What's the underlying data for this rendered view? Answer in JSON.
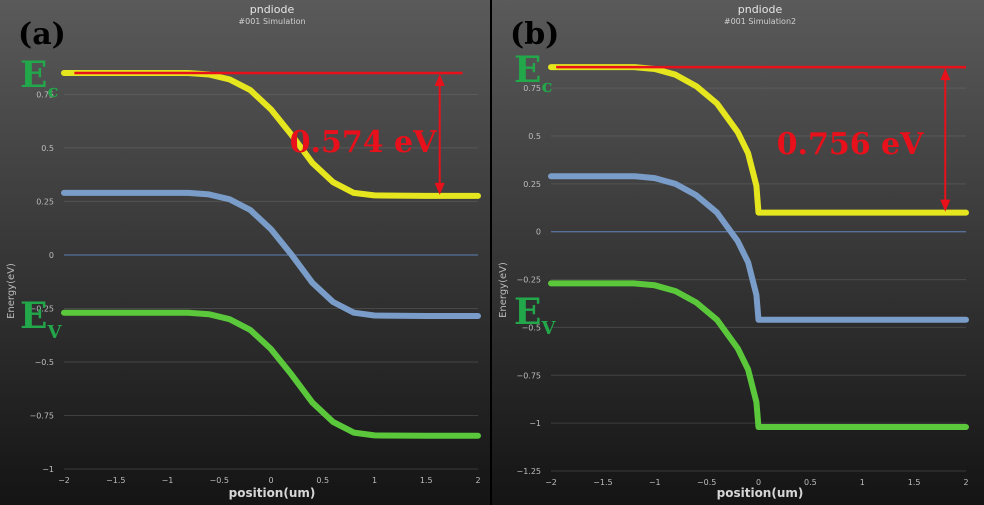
{
  "chart_data": [
    {
      "panel_label": "(a)",
      "title": "pndiode",
      "subtitle": "#001 Simulation",
      "type": "line",
      "xlabel": "position(um)",
      "ylabel": "Energy(eV)",
      "xlim": [
        -2,
        2
      ],
      "ylim": [
        -1,
        0.85
      ],
      "xticks": [
        -2,
        -1.5,
        -1,
        -0.5,
        0,
        0.5,
        1,
        1.5,
        2
      ],
      "xtick_labels": [
        "−2",
        "−1.5",
        "−1",
        "−0.5",
        "0",
        "0.5",
        "1",
        "1.5",
        "2"
      ],
      "yticks": [
        -1,
        -0.75,
        -0.5,
        -0.25,
        0,
        0.25,
        0.5,
        0.75
      ],
      "ytick_labels": [
        "−1",
        "−0.75",
        "−0.5",
        "−0.25",
        "0",
        "0.25",
        "0.5",
        "0.75"
      ],
      "grid": true,
      "zero_line": true,
      "series": [
        {
          "color": "#e6e61e",
          "x": [
            -2,
            -0.8,
            -0.6,
            -0.4,
            -0.2,
            0,
            0.2,
            0.4,
            0.6,
            0.8,
            1,
            1.5,
            2
          ],
          "values": [
            0.85,
            0.85,
            0.843,
            0.82,
            0.77,
            0.68,
            0.56,
            0.43,
            0.34,
            0.29,
            0.278,
            0.276,
            0.276
          ]
        },
        {
          "color": "#7a9cc8",
          "x": [
            -2,
            -0.8,
            -0.6,
            -0.4,
            -0.2,
            0,
            0.2,
            0.4,
            0.6,
            0.8,
            1,
            1.5,
            2
          ],
          "values": [
            0.29,
            0.29,
            0.283,
            0.26,
            0.21,
            0.12,
            -0.0,
            -0.13,
            -0.22,
            -0.27,
            -0.283,
            -0.285,
            -0.285
          ]
        },
        {
          "color": "#5ac83a",
          "x": [
            -2,
            -0.8,
            -0.6,
            -0.4,
            -0.2,
            0,
            0.2,
            0.4,
            0.6,
            0.8,
            1,
            1.5,
            2
          ],
          "values": [
            -0.27,
            -0.27,
            -0.277,
            -0.3,
            -0.35,
            -0.44,
            -0.56,
            -0.69,
            -0.78,
            -0.83,
            -0.843,
            -0.845,
            -0.845
          ]
        }
      ],
      "annotations": {
        "reference_level": {
          "color": "#e8101a",
          "y": 0.85,
          "x": [
            -1.9,
            1.85
          ]
        },
        "gap_arrow": {
          "color": "#e8101a",
          "x": 1.63,
          "y_from": 0.85,
          "y_to": 0.276,
          "label": "0.574 eV"
        },
        "band_labels": [
          {
            "main": "E",
            "sub": "c",
            "y": 0.75
          },
          {
            "main": "E",
            "sub": "V",
            "y": -0.29
          }
        ]
      }
    },
    {
      "panel_label": "(b)",
      "title": "pndiode",
      "subtitle": "#001 Simulation2",
      "type": "line",
      "xlabel": "position(um)",
      "ylabel": "Energy(eV)",
      "xlim": [
        -2,
        2
      ],
      "ylim": [
        -1.25,
        0.85
      ],
      "xticks": [
        -2,
        -1.5,
        -1,
        -0.5,
        0,
        0.5,
        1,
        1.5,
        2
      ],
      "xtick_labels": [
        "−2",
        "−1.5",
        "−1",
        "−0.5",
        "0",
        "0.5",
        "1",
        "1.5",
        "2"
      ],
      "yticks": [
        -1.25,
        -1,
        -0.75,
        -0.5,
        -0.25,
        0,
        0.25,
        0.5,
        0.75
      ],
      "ytick_labels": [
        "−1.25",
        "−1",
        "−0.75",
        "−0.5",
        "−0.25",
        "0",
        "0.25",
        "0.5",
        "0.75"
      ],
      "grid": true,
      "zero_line": true,
      "series": [
        {
          "color": "#e6e61e",
          "x": [
            -2,
            -1.2,
            -1,
            -0.8,
            -0.6,
            -0.4,
            -0.2,
            -0.1,
            -0.02,
            0,
            0.5,
            1,
            1.5,
            2
          ],
          "values": [
            0.86,
            0.86,
            0.85,
            0.82,
            0.76,
            0.67,
            0.52,
            0.41,
            0.24,
            0.1,
            0.1,
            0.1,
            0.1,
            0.1
          ]
        },
        {
          "color": "#7a9cc8",
          "x": [
            -2,
            -1.2,
            -1,
            -0.8,
            -0.6,
            -0.4,
            -0.2,
            -0.1,
            -0.02,
            0,
            0.5,
            1,
            1.5,
            2
          ],
          "values": [
            0.29,
            0.29,
            0.28,
            0.25,
            0.19,
            0.1,
            -0.05,
            -0.16,
            -0.33,
            -0.46,
            -0.46,
            -0.46,
            -0.46,
            -0.46
          ]
        },
        {
          "color": "#5ac83a",
          "x": [
            -2,
            -1.2,
            -1,
            -0.8,
            -0.6,
            -0.4,
            -0.2,
            -0.1,
            -0.02,
            0,
            0.5,
            1,
            1.5,
            2
          ],
          "values": [
            -0.27,
            -0.27,
            -0.28,
            -0.31,
            -0.37,
            -0.46,
            -0.61,
            -0.72,
            -0.89,
            -1.02,
            -1.02,
            -1.02,
            -1.02,
            -1.02
          ]
        }
      ],
      "annotations": {
        "reference_level": {
          "color": "#e8101a",
          "y": 0.86,
          "x": [
            -1.95,
            2
          ]
        },
        "gap_arrow": {
          "color": "#e8101a",
          "x": 1.8,
          "y_from": 0.86,
          "y_to": 0.1,
          "label": "0.756 eV"
        },
        "band_labels": [
          {
            "main": "E",
            "sub": "c",
            "y": 0.75
          },
          {
            "main": "E",
            "sub": "V",
            "y": -0.38
          }
        ]
      }
    }
  ]
}
